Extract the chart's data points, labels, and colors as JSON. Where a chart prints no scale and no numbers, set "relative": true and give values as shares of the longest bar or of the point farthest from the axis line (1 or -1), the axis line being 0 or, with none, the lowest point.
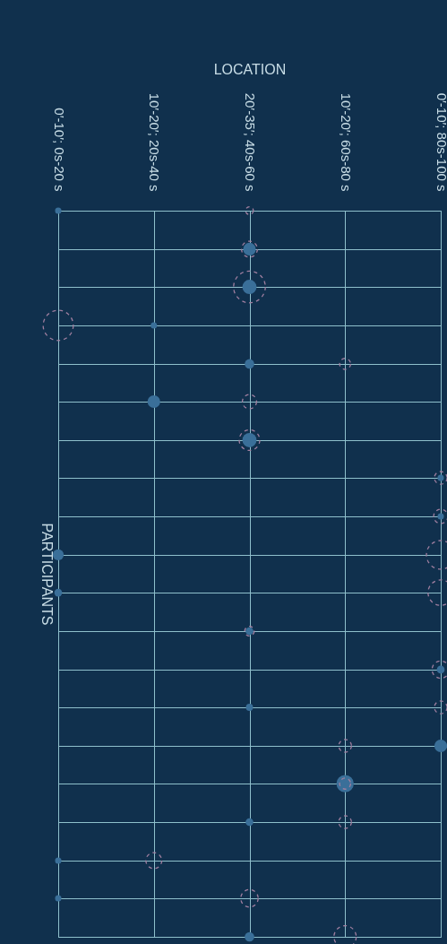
{
  "chart_data": {
    "type": "bubble",
    "relative": true,
    "xlabel": "LOCATION",
    "ylabel": "PARTICIPANTS",
    "categories": [
      "0′-10′; 0s-20 s",
      "10′-20′; 20s-40 s",
      "20′-35′; 40s-60 s",
      "10′-20′; 60s-80 s",
      "0′-10′; 80s-100 s"
    ],
    "grid": true,
    "marker": "circle",
    "legend": false,
    "series": [
      {
        "color": "#3a6f99",
        "line_style": "solid",
        "x": [
          "0′-10′; 0s-20 s",
          "20′-35′; 40s-60 s",
          "20′-35′; 40s-60 s",
          "10′-20′; 20s-40 s",
          "20′-35′; 40s-60 s",
          "10′-20′; 20s-40 s",
          "20′-35′; 40s-60 s",
          "0′-10′; 80s-100 s",
          "0′-10′; 80s-100 s",
          "0′-10′; 0s-20 s",
          "0′-10′; 0s-20 s",
          "20′-35′; 40s-60 s",
          "0′-10′; 80s-100 s",
          "20′-35′; 40s-60 s",
          "0′-10′; 80s-100 s",
          "10′-20′; 60s-80 s",
          "20′-35′; 40s-60 s",
          "0′-10′; 0s-20 s",
          "0′-10′; 0s-20 s",
          "20′-35′; 40s-60 s"
        ],
        "values": [
          1,
          0.947,
          0.895,
          0.842,
          0.789,
          0.737,
          0.684,
          0.632,
          0.579,
          0.526,
          0.474,
          0.421,
          0.368,
          0.316,
          0.263,
          0.211,
          0.158,
          0.105,
          0.053,
          0
        ],
        "sizes": [
          0.04,
          0.16,
          0.2,
          0.04,
          0.09,
          0.16,
          0.2,
          0.04,
          0.04,
          0.12,
          0.06,
          0.06,
          0.06,
          0.05,
          0.16,
          0.3,
          0.06,
          0.04,
          0.04,
          0.09
        ]
      },
      {
        "color": "#a07fa0",
        "line_style": "dashed",
        "x": [
          "20′-35′; 40s-60 s",
          "20′-35′; 40s-60 s",
          "20′-35′; 40s-60 s",
          "0′-10′; 0s-20 s",
          "10′-20′; 60s-80 s",
          "20′-35′; 40s-60 s",
          "20′-35′; 40s-60 s",
          "0′-10′; 80s-100 s",
          "0′-10′; 80s-100 s",
          "0′-10′; 80s-100 s",
          "0′-10′; 80s-100 s",
          "20′-35′; 40s-60 s",
          "0′-10′; 80s-100 s",
          "0′-10′; 80s-100 s",
          "10′-20′; 60s-80 s",
          "10′-20′; 60s-80 s",
          "10′-20′; 60s-80 s",
          "10′-20′; 20s-40 s",
          "20′-35′; 40s-60 s",
          "10′-20′; 60s-80 s"
        ],
        "values": [
          1,
          0.947,
          0.895,
          0.842,
          0.789,
          0.737,
          0.684,
          0.632,
          0.579,
          0.526,
          0.474,
          0.421,
          0.368,
          0.316,
          0.263,
          0.211,
          0.158,
          0.105,
          0.053,
          0
        ],
        "sizes": [
          0.06,
          0.25,
          1,
          0.9,
          0.12,
          0.2,
          0.42,
          0.16,
          0.2,
          0.81,
          0.64,
          0.09,
          0.3,
          0.16,
          0.16,
          0.12,
          0.16,
          0.25,
          0.3,
          0.49
        ]
      }
    ]
  }
}
